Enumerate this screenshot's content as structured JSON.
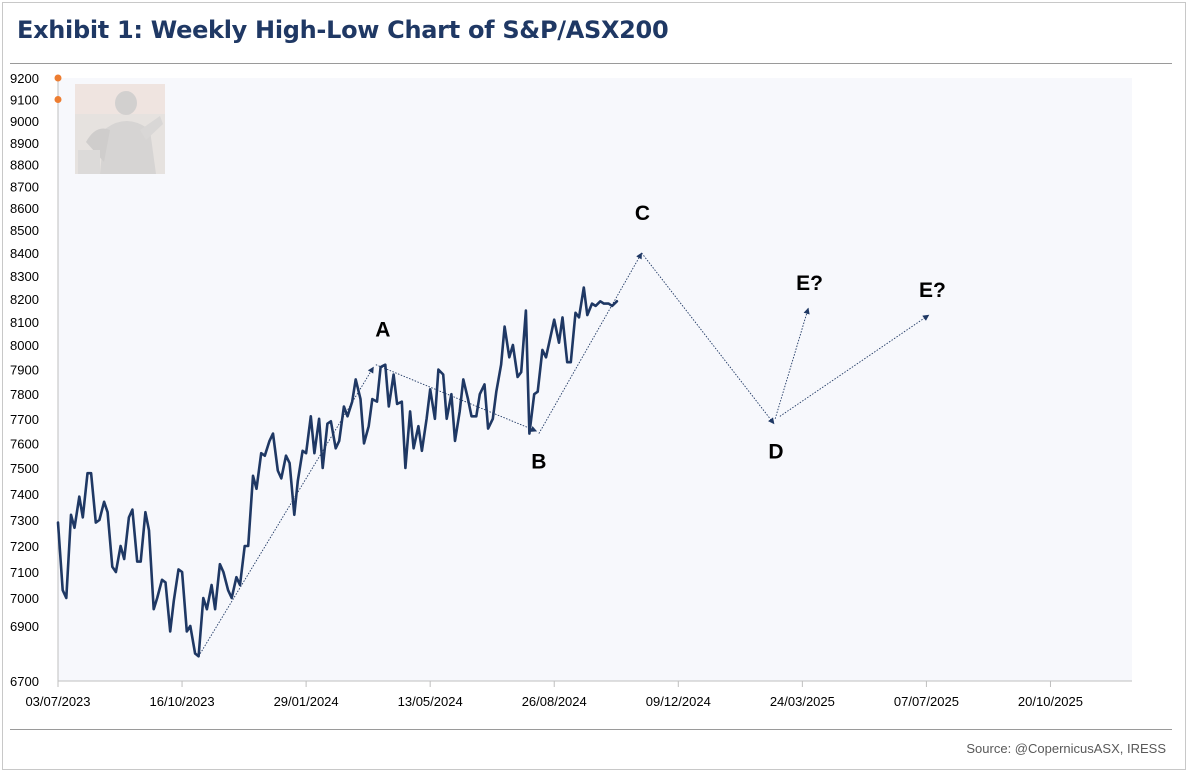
{
  "title": "Exhibit 1: Weekly High-Low Chart of S&P/ASX200",
  "source": "Source: @CopernicusASX, IRESS",
  "chart_data": {
    "type": "line",
    "title": "Exhibit 1: Weekly High-Low Chart of S&P/ASX200",
    "xlabel": "",
    "ylabel": "",
    "grid": false,
    "ylim": [
      6700,
      9200
    ],
    "y_ticks": [
      6700,
      6900,
      7000,
      7100,
      7200,
      7300,
      7400,
      7500,
      7600,
      7700,
      7800,
      7900,
      8000,
      8100,
      8200,
      8300,
      8400,
      8500,
      8600,
      8700,
      8800,
      8900,
      9000,
      9100,
      9200
    ],
    "x_ticks": [
      "03/07/2023",
      "16/10/2023",
      "29/01/2024",
      "13/05/2024",
      "26/08/2024",
      "09/12/2024",
      "24/03/2025",
      "07/07/2025",
      "20/10/2025"
    ],
    "x_range": [
      "2023-07-03",
      "2025-12-28"
    ],
    "series": [
      {
        "type": "line",
        "color": "#1f3864",
        "x": [
          "2023-07-03",
          "2023-07-07",
          "2023-07-10",
          "2023-07-14",
          "2023-07-17",
          "2023-07-21",
          "2023-07-24",
          "2023-07-28",
          "2023-07-31",
          "2023-08-04",
          "2023-08-07",
          "2023-08-11",
          "2023-08-14",
          "2023-08-18",
          "2023-08-21",
          "2023-08-25",
          "2023-08-28",
          "2023-09-01",
          "2023-09-04",
          "2023-09-08",
          "2023-09-11",
          "2023-09-15",
          "2023-09-18",
          "2023-09-22",
          "2023-09-25",
          "2023-09-29",
          "2023-10-02",
          "2023-10-06",
          "2023-10-09",
          "2023-10-13",
          "2023-10-16",
          "2023-10-20",
          "2023-10-23",
          "2023-10-27",
          "2023-10-30",
          "2023-11-03",
          "2023-11-06",
          "2023-11-10",
          "2023-11-13",
          "2023-11-17",
          "2023-11-20",
          "2023-11-24",
          "2023-11-27",
          "2023-12-01",
          "2023-12-04",
          "2023-12-08",
          "2023-12-11",
          "2023-12-15",
          "2023-12-18",
          "2023-12-22",
          "2023-12-25",
          "2023-12-29",
          "2024-01-01",
          "2024-01-05",
          "2024-01-08",
          "2024-01-12",
          "2024-01-15",
          "2024-01-19",
          "2024-01-22",
          "2024-01-26",
          "2024-01-29",
          "2024-02-02",
          "2024-02-05",
          "2024-02-09",
          "2024-02-12",
          "2024-02-16",
          "2024-02-19",
          "2024-02-23",
          "2024-02-26",
          "2024-03-01",
          "2024-03-04",
          "2024-03-08",
          "2024-03-11",
          "2024-03-15",
          "2024-03-18",
          "2024-03-22",
          "2024-03-25",
          "2024-03-29",
          "2024-04-01",
          "2024-04-05",
          "2024-04-08",
          "2024-04-12",
          "2024-04-15",
          "2024-04-19",
          "2024-04-22",
          "2024-04-26",
          "2024-04-29",
          "2024-05-03",
          "2024-05-06",
          "2024-05-10",
          "2024-05-13",
          "2024-05-17",
          "2024-05-20",
          "2024-05-24",
          "2024-05-27",
          "2024-05-31",
          "2024-06-03",
          "2024-06-07",
          "2024-06-10",
          "2024-06-14",
          "2024-06-17",
          "2024-06-21",
          "2024-06-24",
          "2024-06-28",
          "2024-07-01",
          "2024-07-05",
          "2024-07-08",
          "2024-07-12",
          "2024-07-15",
          "2024-07-19",
          "2024-07-22",
          "2024-07-26",
          "2024-07-29",
          "2024-08-02",
          "2024-08-05",
          "2024-08-09",
          "2024-08-12",
          "2024-08-16",
          "2024-08-19",
          "2024-08-23",
          "2024-08-26",
          "2024-08-30",
          "2024-09-02",
          "2024-09-06",
          "2024-09-09",
          "2024-09-13",
          "2024-09-16",
          "2024-09-20",
          "2024-09-23",
          "2024-09-27",
          "2024-09-30",
          "2024-10-04",
          "2024-10-07",
          "2024-10-11",
          "2024-10-14",
          "2024-10-18"
        ],
        "y": [
          7290,
          7030,
          7000,
          7320,
          7270,
          7390,
          7310,
          7480,
          7480,
          7290,
          7300,
          7370,
          7330,
          7120,
          7100,
          7200,
          7150,
          7310,
          7340,
          7140,
          7140,
          7330,
          7260,
          6960,
          7000,
          7070,
          7060,
          6880,
          6990,
          7110,
          7100,
          6880,
          6900,
          6800,
          6790,
          7000,
          6960,
          7050,
          6960,
          7130,
          7100,
          7030,
          7000,
          7080,
          7050,
          7200,
          7200,
          7470,
          7420,
          7560,
          7550,
          7610,
          7640,
          7490,
          7460,
          7550,
          7520,
          7320,
          7450,
          7570,
          7560,
          7710,
          7560,
          7700,
          7500,
          7680,
          7690,
          7580,
          7610,
          7750,
          7710,
          7770,
          7860,
          7780,
          7600,
          7670,
          7780,
          7770,
          7910,
          7920,
          7750,
          7880,
          7760,
          7770,
          7500,
          7730,
          7580,
          7670,
          7570,
          7700,
          7820,
          7700,
          7900,
          7880,
          7700,
          7800,
          7610,
          7730,
          7860,
          7780,
          7710,
          7710,
          7800,
          7840,
          7660,
          7700,
          7810,
          7920,
          8080,
          7950,
          8000,
          7870,
          7890,
          8150,
          7640,
          7800,
          7810,
          7980,
          7950,
          8040,
          8110,
          8010,
          8120,
          7930,
          7930,
          8140,
          8120,
          8250,
          8130,
          8180,
          8170,
          8190,
          8180,
          8180,
          8170,
          8190
        ]
      }
    ],
    "annotations": [
      {
        "label": "A",
        "x": "2024-03-28",
        "y": 7920
      },
      {
        "label": "B",
        "x": "2024-08-13",
        "y": 7640
      },
      {
        "label": "C",
        "x": "2024-11-07",
        "y": 8400
      },
      {
        "label": "D",
        "x": "2025-02-28",
        "y": 7680
      },
      {
        "label": "E?",
        "x": "2025-03-25",
        "y": 8160
      },
      {
        "label": "E?",
        "x": "2025-07-07",
        "y": 8130
      }
    ],
    "projection_lines": [
      {
        "from": {
          "x": "2023-10-30",
          "y": 6790
        },
        "to": {
          "x": "2024-03-26",
          "y": 7910
        }
      },
      {
        "from": {
          "x": "2024-03-28",
          "y": 7920
        },
        "to": {
          "x": "2024-08-11",
          "y": 7650
        }
      },
      {
        "from": {
          "x": "2024-08-13",
          "y": 7640
        },
        "to": {
          "x": "2024-11-08",
          "y": 8400
        }
      },
      {
        "from": {
          "x": "2024-11-08",
          "y": 8400
        },
        "to": {
          "x": "2025-02-28",
          "y": 7680
        }
      },
      {
        "from": {
          "x": "2025-03-01",
          "y": 7700
        },
        "to": {
          "x": "2025-03-29",
          "y": 8160
        }
      },
      {
        "from": {
          "x": "2025-03-05",
          "y": 7710
        },
        "to": {
          "x": "2025-07-09",
          "y": 8130
        }
      }
    ],
    "colors": {
      "line": "#1f3864",
      "projection": "#1f3864",
      "marker": "#ed7d31",
      "plot_background": "#f7f8fc",
      "title": "#1f3864"
    },
    "markers": [
      {
        "x": "2023-07-03",
        "y": 9200
      },
      {
        "x": "2023-07-03",
        "y": 9100
      }
    ]
  }
}
